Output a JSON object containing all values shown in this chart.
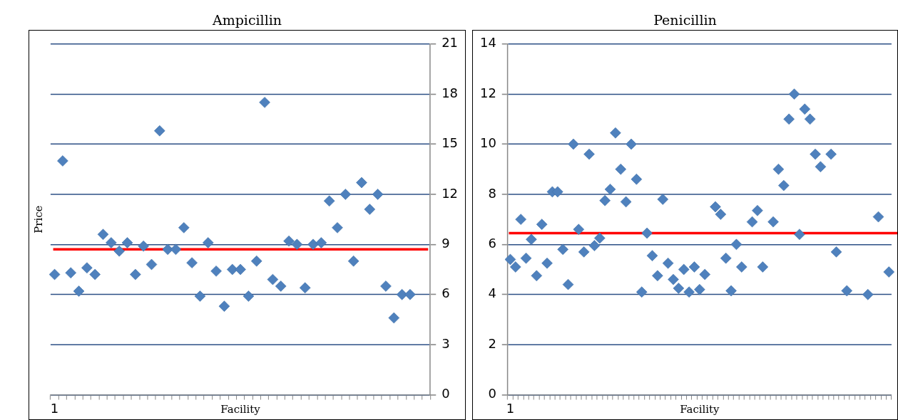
{
  "chart_data": [
    {
      "type": "scatter",
      "title": "Ampicillin",
      "xlabel": "Facility",
      "ylabel": "Price",
      "marker": "diamond",
      "grid": "y",
      "categories": [
        "1",
        null,
        null,
        null,
        null,
        null,
        null,
        null,
        null,
        null,
        null,
        null,
        null,
        null,
        null,
        null,
        null,
        null,
        null,
        null,
        null,
        null,
        null,
        null,
        null,
        null,
        null,
        null,
        null,
        null,
        null,
        null,
        null,
        null,
        null,
        null,
        null,
        null,
        null,
        null,
        null,
        null,
        null,
        null,
        null,
        null,
        null
      ],
      "series": [
        {
          "color": "#4f81bd",
          "values": [
            7.2,
            14.0,
            7.3,
            6.2,
            7.6,
            7.2,
            9.6,
            9.1,
            8.6,
            9.1,
            7.2,
            8.9,
            7.8,
            15.8,
            8.7,
            8.7,
            10.0,
            7.9,
            5.9,
            9.1,
            7.4,
            5.3,
            7.5,
            7.5,
            5.9,
            8.0,
            17.5,
            6.9,
            6.5,
            9.2,
            9.0,
            6.4,
            9.0,
            9.1,
            11.6,
            10.0,
            12.0,
            8.0,
            12.7,
            11.1,
            12.0,
            6.5,
            4.6,
            6.0,
            6.0,
            null,
            null
          ]
        }
      ],
      "ylim": [
        0,
        21
      ],
      "yticks": [
        0,
        3,
        6,
        9,
        12,
        15,
        18,
        21
      ],
      "ref_lines": [
        {
          "axis": "y",
          "value": 8.7,
          "color": "#ff0000"
        }
      ]
    },
    {
      "type": "scatter",
      "title": "Penicillin",
      "xlabel": "Facility",
      "marker": "diamond",
      "grid": "y",
      "categories": [
        "1",
        null,
        null,
        null,
        null,
        null,
        null,
        null,
        null,
        null,
        null,
        null,
        null,
        null,
        null,
        null,
        null,
        null,
        null,
        null,
        null,
        null,
        null,
        null,
        null,
        null,
        null,
        null,
        null,
        null,
        null,
        null,
        null,
        null,
        null,
        null,
        null,
        null,
        null,
        null,
        null,
        null,
        null,
        null,
        null,
        null,
        null,
        null,
        null,
        null,
        null,
        null,
        null,
        null,
        null,
        null,
        null,
        null,
        null,
        null,
        null,
        null,
        null,
        null,
        null,
        null,
        null,
        null,
        null,
        null,
        null,
        null,
        null
      ],
      "series": [
        {
          "color": "#4f81bd",
          "values": [
            5.4,
            5.1,
            7.0,
            5.45,
            6.2,
            4.75,
            6.8,
            5.25,
            8.1,
            8.1,
            5.8,
            4.4,
            10.0,
            6.6,
            5.7,
            9.6,
            5.95,
            6.25,
            7.75,
            8.2,
            10.45,
            9.0,
            7.7,
            10.0,
            8.6,
            4.1,
            6.45,
            5.55,
            4.75,
            7.8,
            5.25,
            4.6,
            4.25,
            5.0,
            4.1,
            5.1,
            4.2,
            4.8,
            null,
            7.5,
            7.2,
            5.45,
            4.15,
            6.0,
            5.1,
            null,
            6.9,
            7.35,
            5.1,
            null,
            6.9,
            9.0,
            8.35,
            11.0,
            12.0,
            6.4,
            11.4,
            11.0,
            9.6,
            9.1,
            null,
            9.6,
            5.7,
            null,
            4.15,
            null,
            null,
            null,
            4.0,
            null,
            7.1,
            null,
            4.9
          ]
        }
      ],
      "ylim": [
        0,
        14
      ],
      "yticks": [
        0,
        2,
        4,
        6,
        8,
        10,
        12,
        14
      ],
      "ref_lines": [
        {
          "axis": "y",
          "value": 6.45,
          "color": "#ff0000"
        }
      ]
    }
  ]
}
